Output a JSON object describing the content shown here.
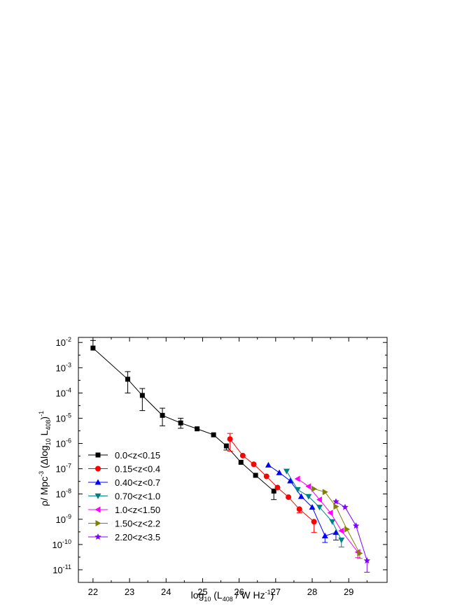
{
  "chart_data": {
    "type": "scatter",
    "xlabel": {
      "pre": "log",
      "sub1": "10",
      "mid": " (L",
      "sub2": "408",
      "post": " / W Hz",
      "sup": "-1",
      "end": ")"
    },
    "ylabel": {
      "pre": "ρ/ Mpc",
      "sup1": "-3",
      "mid": " (Δlog",
      "sub1": "10",
      "mid2": " L",
      "sub2": "408",
      "end": ")",
      "sup2": "-1"
    },
    "xlim": [
      21.6,
      30.05
    ],
    "ylog": true,
    "ylim_exp": [
      -11.5,
      -1.8
    ],
    "x_ticks": [
      22,
      23,
      24,
      25,
      26,
      27,
      28,
      29
    ],
    "y_ticks_exp": [
      -11,
      -10,
      -9,
      -8,
      -7,
      -6,
      -5,
      -4,
      -3,
      -2
    ],
    "y_tick_base": "10",
    "legend_position": "lower-left",
    "series": [
      {
        "name": "0.0<z<0.15",
        "color": "#000000",
        "marker": "square",
        "x": [
          22.0,
          22.95,
          23.35,
          23.9,
          24.4,
          24.85,
          25.3,
          25.65,
          26.05,
          26.45,
          26.95
        ],
        "y": [
          0.006,
          0.00035,
          8e-05,
          1.3e-05,
          6.5e-06,
          3.8e-06,
          2.2e-06,
          8e-07,
          1.8e-07,
          5.5e-08,
          1.3e-08
        ],
        "err_lo": [
          null,
          0.0001,
          2e-05,
          5e-06,
          4e-06,
          null,
          null,
          5.5e-07,
          null,
          null,
          6e-09
        ],
        "err_hi": [
          0.012,
          0.0007,
          0.00015,
          2.5e-05,
          1e-05,
          null,
          null,
          null,
          null,
          null,
          null
        ]
      },
      {
        "name": "0.15<z<0.4",
        "color": "#ff0000",
        "marker": "circle",
        "x": [
          25.75,
          26.1,
          26.4,
          26.75,
          27.05,
          27.35,
          27.65,
          28.05
        ],
        "y": [
          1.5e-06,
          3.3e-07,
          1.5e-07,
          5e-08,
          1.8e-08,
          7.5e-09,
          2.5e-09,
          8e-10
        ],
        "err_lo": [
          5e-07,
          null,
          null,
          null,
          null,
          null,
          1.8e-09,
          3e-10
        ],
        "err_hi": [
          2.5e-06,
          null,
          null,
          null,
          null,
          null,
          null,
          null
        ]
      },
      {
        "name": "0.40<z<0.7",
        "color": "#0000ff",
        "marker": "triangle-up",
        "x": [
          26.8,
          27.1,
          27.4,
          27.7,
          28.0,
          28.35,
          28.65
        ],
        "y": [
          1.4e-07,
          7e-08,
          3.3e-08,
          8e-09,
          3e-09,
          2.2e-10,
          3e-10
        ],
        "err_lo": [
          null,
          null,
          null,
          null,
          null,
          1.2e-10,
          1.5e-10
        ],
        "err_hi": [
          null,
          null,
          null,
          null,
          null,
          null,
          null
        ]
      },
      {
        "name": "0.70<z<1.0",
        "color": "#008080",
        "marker": "triangle-down",
        "x": [
          27.3,
          27.6,
          27.9,
          28.2,
          28.55,
          28.8
        ],
        "y": [
          8e-08,
          1.5e-08,
          8e-09,
          3e-09,
          8e-10,
          1.5e-10
        ],
        "err_lo": [
          null,
          null,
          null,
          null,
          null,
          8e-11
        ],
        "err_hi": [
          null,
          null,
          null,
          null,
          null,
          null
        ]
      },
      {
        "name": "1.0<z<1.50",
        "color": "#ff00ff",
        "marker": "triangle-left",
        "x": [
          27.6,
          27.9,
          28.2,
          28.5,
          28.8,
          29.25
        ],
        "y": [
          4e-08,
          2e-08,
          6e-09,
          1.8e-09,
          3.5e-10,
          5e-11
        ],
        "err_lo": [
          null,
          null,
          null,
          null,
          null,
          3e-11
        ],
        "err_hi": [
          null,
          null,
          null,
          null,
          null,
          null
        ]
      },
      {
        "name": "1.50<z<2.2",
        "color": "#808000",
        "marker": "triangle-right",
        "x": [
          28.05,
          28.35,
          28.65,
          28.95,
          29.3
        ],
        "y": [
          1.6e-08,
          1.2e-08,
          3.2e-09,
          4e-10,
          4.5e-11
        ],
        "err_lo": [
          null,
          null,
          null,
          null,
          2.8e-11
        ],
        "err_hi": [
          null,
          null,
          null,
          null,
          null
        ]
      },
      {
        "name": "2.20<z<3.5",
        "color": "#8000ff",
        "marker": "star",
        "x": [
          28.65,
          28.9,
          29.2,
          29.5
        ],
        "y": [
          5e-09,
          3e-09,
          5.5e-10,
          2.3e-11
        ],
        "err_lo": [
          null,
          null,
          null,
          8e-12
        ],
        "err_hi": [
          null,
          null,
          null,
          null
        ]
      }
    ]
  }
}
